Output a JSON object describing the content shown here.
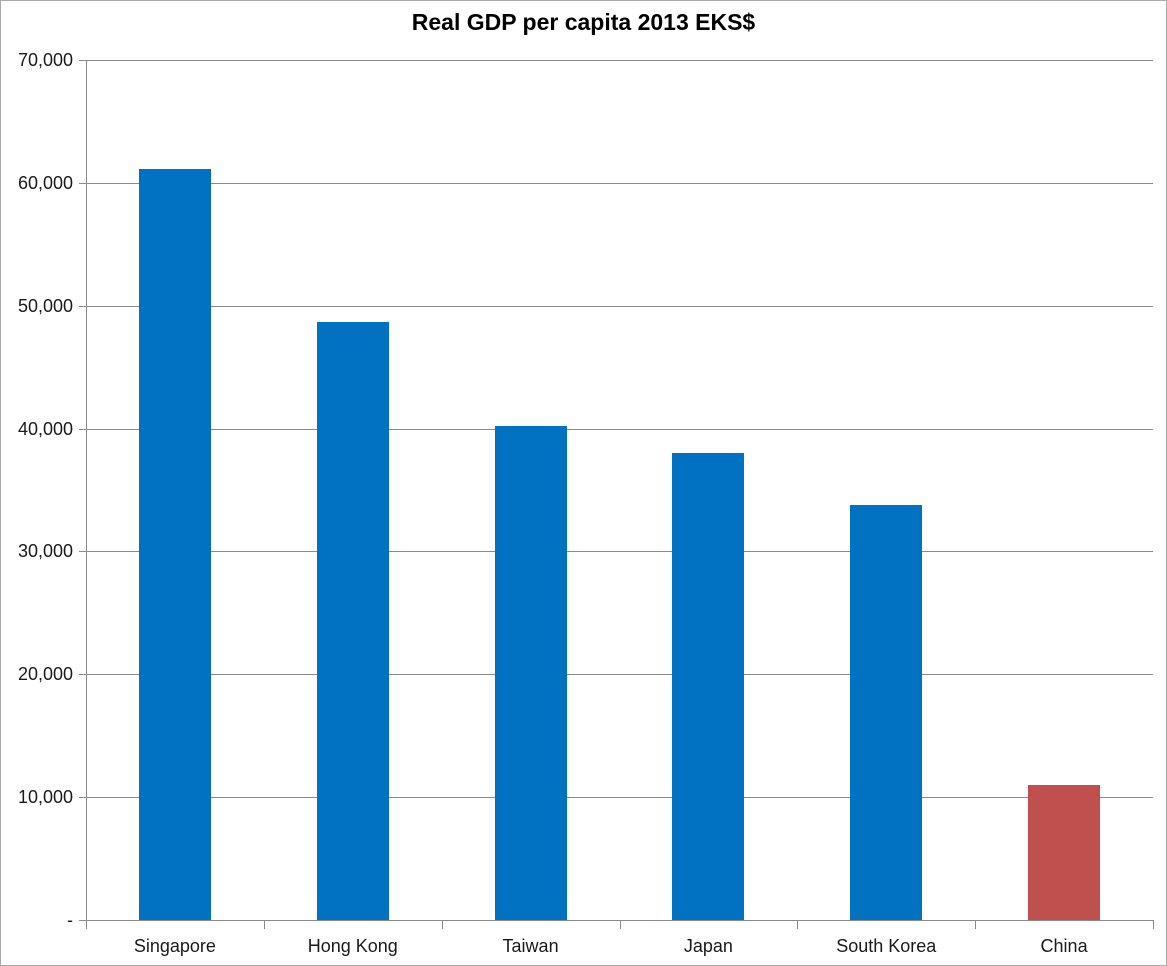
{
  "title": "Real GDP per capita 2013 EKS$",
  "chart_data": {
    "type": "bar",
    "title": "Real GDP per capita 2013 EKS$",
    "xlabel": "",
    "ylabel": "",
    "categories": [
      "Singapore",
      "Hong Kong",
      "Taiwan",
      "Japan",
      "South Korea",
      "China"
    ],
    "values": [
      61100,
      48700,
      40200,
      38000,
      33800,
      11000
    ],
    "bar_colors": [
      "#0172C1",
      "#0172C1",
      "#0172C1",
      "#0172C1",
      "#0172C1",
      "#BF504D"
    ],
    "ylim": [
      0,
      70000
    ],
    "y_tick_interval": 10000,
    "y_tick_labels_top_to_bottom": [
      "70,000",
      "60,000",
      "50,000",
      "40,000",
      "30,000",
      "20,000",
      "10,000",
      "-"
    ],
    "grid": "horizontal",
    "legend": "none"
  },
  "colors": {
    "bar_blue": "#0172C1",
    "bar_red": "#BF504D",
    "gridline": "#8a8a8a",
    "axis": "#8a8a8a",
    "tick": "#8a8a8a",
    "label_text": "#1a1a1a",
    "title_text": "#000000",
    "chart_border": "#a9a9a9",
    "background": "#ffffff"
  }
}
